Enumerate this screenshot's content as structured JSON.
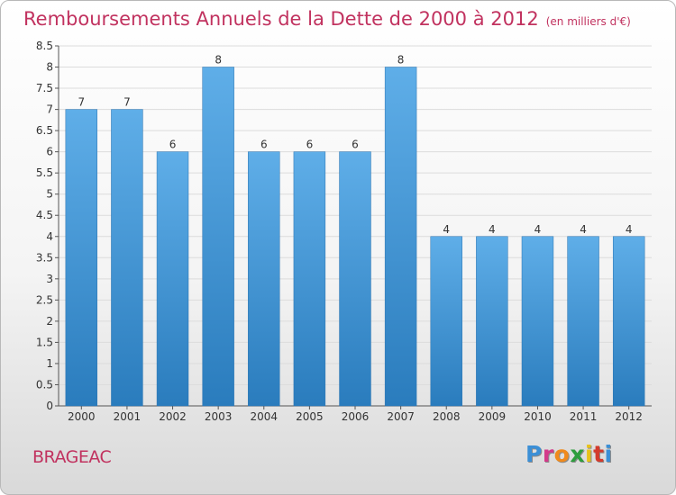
{
  "title": "Remboursements Annuels de la Dette de 2000 à 2012",
  "unit": "(en milliers d'€)",
  "town": "BRAGEAC",
  "logo": {
    "text": "Proxiti",
    "colors": [
      "#3b8fd6",
      "#d33a8a",
      "#f08a1c",
      "#2e9e3d",
      "#e8c21a",
      "#d33a2c",
      "#3b8fd6"
    ]
  },
  "colors": {
    "title": "#c1325f",
    "bar_top": "#5faee8",
    "bar_bottom": "#2a7cbd",
    "grid": "#dcdcdc"
  },
  "chart_data": {
    "type": "bar",
    "categories": [
      "2000",
      "2001",
      "2002",
      "2003",
      "2004",
      "2005",
      "2006",
      "2007",
      "2008",
      "2009",
      "2010",
      "2011",
      "2012"
    ],
    "values": [
      7,
      7,
      6,
      8,
      6,
      6,
      6,
      8,
      4,
      4,
      4,
      4,
      4
    ],
    "data_labels": [
      "7",
      "7",
      "6",
      "8",
      "6",
      "6",
      "6",
      "8",
      "4",
      "4",
      "4",
      "4",
      "4"
    ],
    "yticks": [
      "0",
      "0.5",
      "1",
      "1.5",
      "2",
      "2.5",
      "3",
      "3.5",
      "4",
      "4.5",
      "5",
      "5.5",
      "6",
      "6.5",
      "7",
      "7.5",
      "8",
      "8.5"
    ],
    "ylim": [
      0,
      8.5
    ],
    "grid": true
  }
}
